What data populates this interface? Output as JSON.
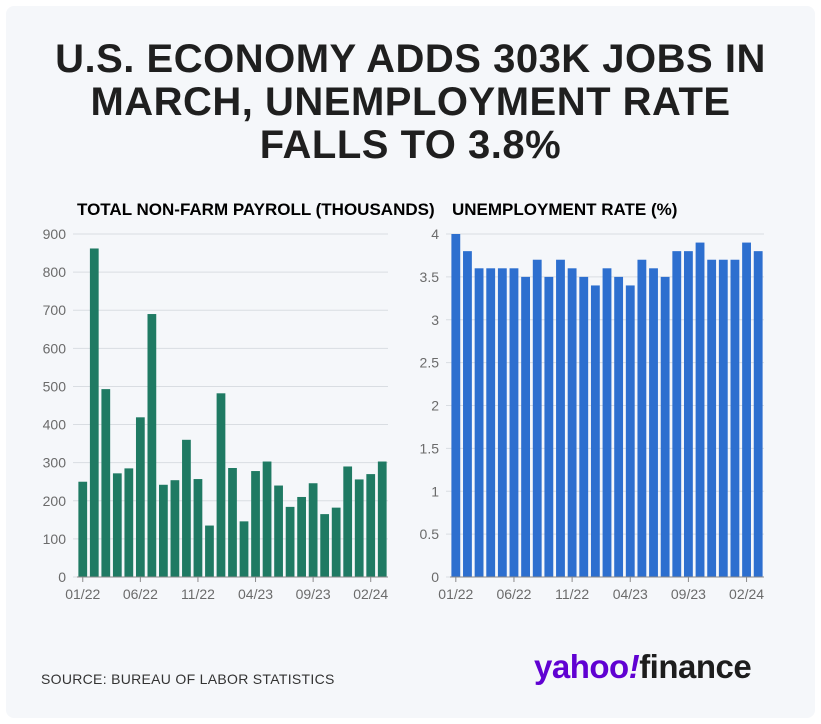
{
  "headline": {
    "line1": "U.S. ECONOMY ADDS 303K JOBS IN",
    "line2": "MARCH, UNEMPLOYMENT RATE",
    "line3": "FALLS TO 3.8%"
  },
  "source": "SOURCE: BUREAU OF LABOR STATISTICS",
  "logo": {
    "part1": "yahoo",
    "part2": "!",
    "part3": "finance"
  },
  "colors": {
    "payroll": "#1f7a63",
    "rate": "#2d6fcf",
    "grid": "#d9dde2",
    "axis": "#8a8a8a",
    "headline": "#1f1f1f"
  },
  "chart_data": [
    {
      "type": "bar",
      "title": "TOTAL NON-FARM PAYROLL (THOUSANDS)",
      "xlabel": "",
      "ylabel": "",
      "ylim": [
        0,
        900
      ],
      "yticks": [
        0,
        100,
        200,
        300,
        400,
        500,
        600,
        700,
        800,
        900
      ],
      "grid": true,
      "categories": [
        "01/22",
        "02/22",
        "03/22",
        "04/22",
        "05/22",
        "06/22",
        "07/22",
        "08/22",
        "09/22",
        "10/22",
        "11/22",
        "12/22",
        "01/23",
        "02/23",
        "03/23",
        "04/23",
        "05/23",
        "06/23",
        "07/23",
        "08/23",
        "09/23",
        "10/23",
        "11/23",
        "12/23",
        "01/24",
        "02/24",
        "03/24"
      ],
      "values": [
        250,
        862,
        493,
        272,
        285,
        419,
        690,
        242,
        254,
        360,
        257,
        135,
        482,
        286,
        146,
        278,
        303,
        240,
        184,
        210,
        246,
        165,
        182,
        290,
        256,
        270,
        303
      ],
      "xtick_labels": [
        "01/22",
        "06/22",
        "11/22",
        "04/23",
        "09/23",
        "02/24"
      ]
    },
    {
      "type": "bar",
      "title": "UNEMPLOYMENT RATE (%)",
      "xlabel": "",
      "ylabel": "",
      "ylim": [
        0,
        4
      ],
      "yticks": [
        0,
        0.5,
        1,
        1.5,
        2,
        2.5,
        3,
        3.5,
        4
      ],
      "grid": true,
      "categories": [
        "01/22",
        "02/22",
        "03/22",
        "04/22",
        "05/22",
        "06/22",
        "07/22",
        "08/22",
        "09/22",
        "10/22",
        "11/22",
        "12/22",
        "01/23",
        "02/23",
        "03/23",
        "04/23",
        "05/23",
        "06/23",
        "07/23",
        "08/23",
        "09/23",
        "10/23",
        "11/23",
        "12/23",
        "01/24",
        "02/24",
        "03/24"
      ],
      "values": [
        4.0,
        3.8,
        3.6,
        3.6,
        3.6,
        3.6,
        3.5,
        3.7,
        3.5,
        3.7,
        3.6,
        3.5,
        3.4,
        3.6,
        3.5,
        3.4,
        3.7,
        3.6,
        3.5,
        3.8,
        3.8,
        3.9,
        3.7,
        3.7,
        3.7,
        3.9,
        3.8
      ],
      "xtick_labels": [
        "01/22",
        "06/22",
        "11/22",
        "04/23",
        "09/23",
        "02/24"
      ]
    }
  ]
}
